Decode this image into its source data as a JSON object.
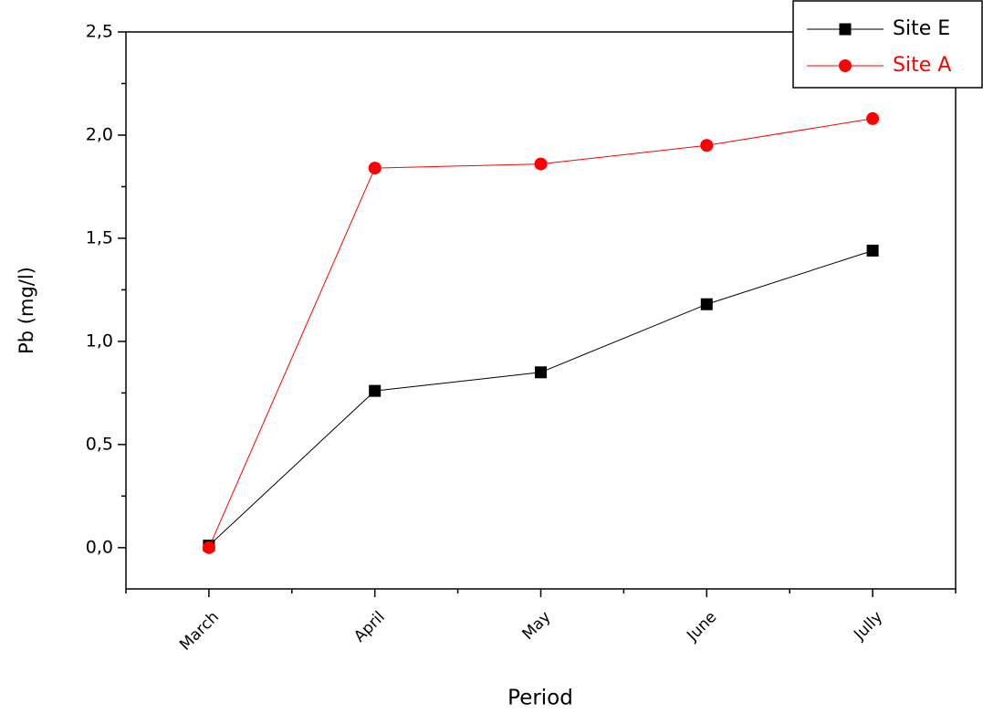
{
  "chart_data": {
    "type": "line",
    "xlabel": "Period",
    "ylabel": "Pb (mg/l)",
    "categories": [
      "March",
      "April",
      "May",
      "June",
      "Jully"
    ],
    "series": [
      {
        "name": "Site E",
        "color": "#000000",
        "marker": "square",
        "values": [
          0.01,
          0.76,
          0.85,
          1.18,
          1.44
        ]
      },
      {
        "name": "Site A",
        "color": "#ff0000",
        "marker": "circle",
        "values": [
          0.0,
          1.84,
          1.86,
          1.95,
          2.08
        ]
      }
    ],
    "ylim": [
      -0.2,
      2.5
    ],
    "yticks": [
      {
        "value": 0,
        "label": "0,0"
      },
      {
        "value": 0.5,
        "label": "0,5"
      },
      {
        "value": 1,
        "label": "1,0"
      },
      {
        "value": 1.5,
        "label": "1,5"
      },
      {
        "value": 2,
        "label": "2,0"
      },
      {
        "value": 2.5,
        "label": "2,5"
      }
    ],
    "legend": "upper right"
  }
}
